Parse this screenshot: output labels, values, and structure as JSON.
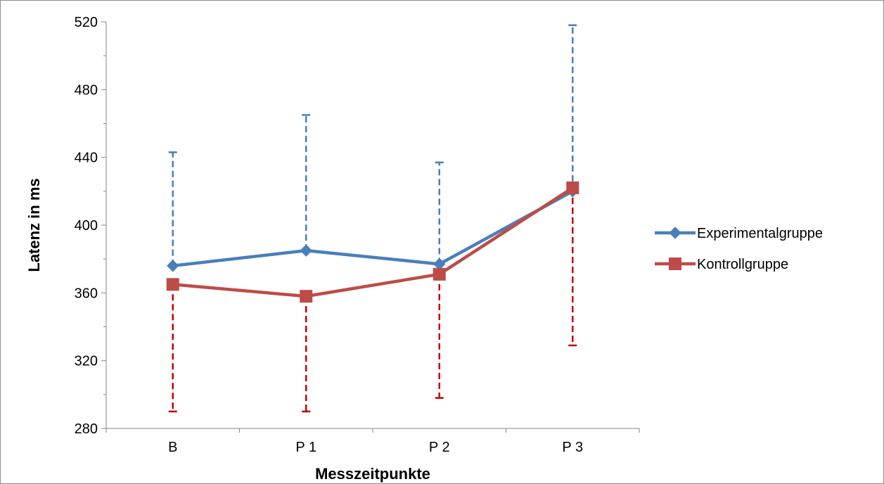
{
  "chart_data": {
    "type": "line",
    "title": "",
    "xlabel": "Messzeitpunkte",
    "ylabel": "Latenz in ms",
    "categories": [
      "B",
      "P 1",
      "P 2",
      "P 3"
    ],
    "ylim": [
      280,
      520
    ],
    "yticks": [
      280,
      320,
      360,
      400,
      440,
      480,
      520
    ],
    "grid": false,
    "legend_position": "right",
    "series": [
      {
        "name": "Experimentalgruppe",
        "color": "#4a7ebb",
        "marker": "diamond",
        "values": [
          376,
          385,
          377,
          420
        ],
        "error_upper": [
          443,
          465,
          437,
          518
        ],
        "error_style": "dashed, upper only"
      },
      {
        "name": "Kontrollgruppe",
        "color": "#be4b48",
        "error_color": "#c00000",
        "marker": "square",
        "values": [
          365,
          358,
          371,
          422
        ],
        "error_lower": [
          290,
          290,
          298,
          329
        ],
        "error_style": "dashed, lower only"
      }
    ]
  }
}
